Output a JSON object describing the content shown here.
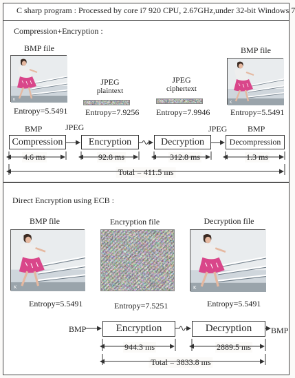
{
  "header_title": "C sharp program : Processed by core i7 920 CPU, 2.67GHz,under 32-bit Windows 7",
  "sec1": {
    "heading": "Compression+Encryption :",
    "bmp_left_label": "BMP file",
    "bmp_right_label": "BMP file",
    "jpeg_plain_label1": "JPEG",
    "jpeg_plain_label2": "plaintext",
    "jpeg_cipher_label1": "JPEG",
    "jpeg_cipher_label2": "ciphertext",
    "entropy_bmp_left": "Entropy=5.5491",
    "entropy_plain": "Entropy=7.9256",
    "entropy_cipher": "Entropy=7.9946",
    "entropy_bmp_right": "Entropy=5.5491",
    "flow_label_bmp_in": "BMP",
    "flow_label_jpeg_1": "JPEG",
    "flow_label_jpeg_2": "JPEG",
    "flow_label_bmp_out": "BMP",
    "box_compression": "Compression",
    "box_encryption": "Encryption",
    "box_decryption": "Decryption",
    "box_decompression": "Decompression",
    "t_compression": "4.6 ms",
    "t_encryption": "92.8 ms",
    "t_decryption": "312.8 ms",
    "t_decompression": "1.3 ms",
    "total": "Total = 411.5 ms"
  },
  "sec2": {
    "heading": "Direct Encryption using ECB :",
    "bmp_label": "BMP file",
    "enc_label": "Encryption file",
    "dec_label": "Decryption file",
    "entropy_bmp": "Entropy=5.5491",
    "entropy_enc": "Entropy=7.5251",
    "entropy_dec": "Entropy=5.5491",
    "flow_in": "BMP",
    "flow_out": "BMP",
    "box_encryption": "Encryption",
    "box_decryption": "Decryption",
    "t_encryption": "944.3 ms",
    "t_decryption": "2889.5 ms",
    "total": "Total = 3833.8 ms"
  },
  "colors": {
    "photo_sky": "#e9ecee",
    "photo_pink": "#d9468a",
    "noise_base": "#8a8a8a"
  }
}
